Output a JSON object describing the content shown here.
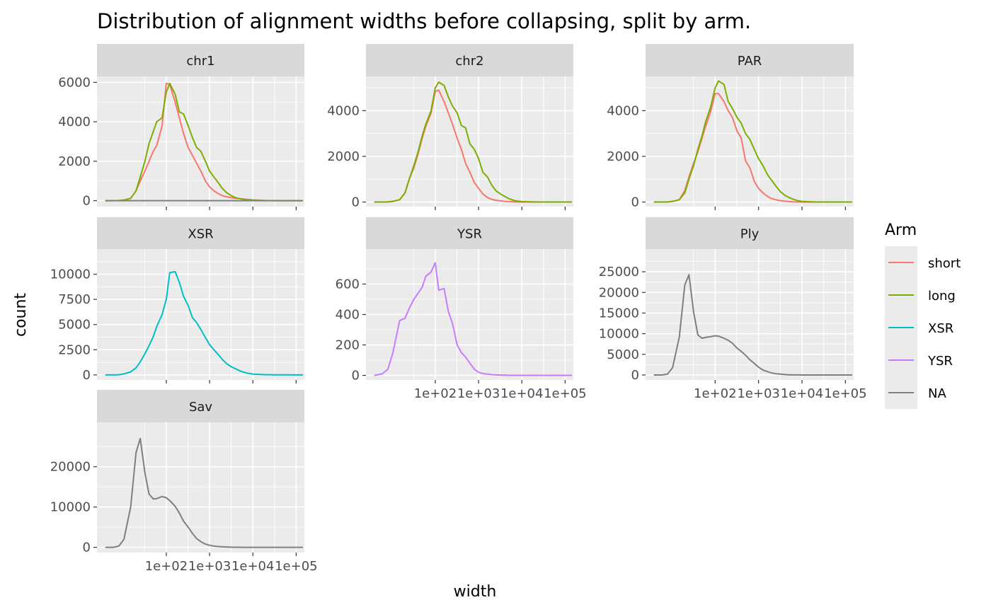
{
  "chart_data": {
    "type": "line",
    "title": "Distribution of alignment widths before collapsing, split by arm.",
    "xlabel": "width",
    "ylabel": "count",
    "x_scale": "log10",
    "xlim": [
      2.5,
      155000
    ],
    "x_ticks": [
      100,
      1000,
      10000,
      100000
    ],
    "x_tick_labels": [
      "1e+02",
      "1e+03",
      "1e+04",
      "1e+05"
    ],
    "grid": true,
    "legend": {
      "title": "Arm",
      "position": "right",
      "entries": [
        {
          "name": "short",
          "color": "#F8766D"
        },
        {
          "name": "long",
          "color": "#7CAE00"
        },
        {
          "name": "XSR",
          "color": "#00BFC4"
        },
        {
          "name": "YSR",
          "color": "#C77CFF"
        },
        {
          "name": "NA",
          "color": "#7F7F7F"
        }
      ]
    },
    "x": [
      4,
      5.9,
      8,
      10.5,
      15,
      20,
      25,
      32,
      40,
      50,
      60,
      80,
      100,
      120,
      160,
      200,
      250,
      320,
      400,
      500,
      630,
      800,
      1000,
      1260,
      1600,
      2000,
      2500,
      3200,
      4000,
      5000,
      6300,
      8000,
      10000,
      15000,
      20000,
      30000,
      50000,
      100000,
      140000
    ],
    "panels": [
      {
        "label": "chr1",
        "ylim": [
          -300,
          6300
        ],
        "y_ticks": [
          0,
          2000,
          4000,
          6000
        ],
        "y_tick_labels": [
          "0",
          "2000",
          "4000",
          "6000"
        ],
        "show_x_labels": false,
        "series": [
          {
            "name": "short",
            "color": "#F8766D",
            "values": [
              0,
              0,
              10,
              30,
              120,
              500,
              1000,
              1500,
              2000,
              2500,
              2800,
              3800,
              5950,
              5900,
              5000,
              4200,
              3400,
              2700,
              2300,
              1900,
              1500,
              1000,
              700,
              500,
              350,
              250,
              200,
              150,
              120,
              100,
              80,
              60,
              40,
              20,
              10,
              5,
              2,
              0,
              0
            ]
          },
          {
            "name": "long",
            "color": "#7CAE00",
            "values": [
              0,
              0,
              10,
              30,
              120,
              500,
              1200,
              2000,
              2900,
              3500,
              4000,
              4200,
              5500,
              5950,
              5400,
              4500,
              4400,
              3800,
              3200,
              2700,
              2500,
              2000,
              1500,
              1200,
              900,
              600,
              400,
              250,
              150,
              100,
              60,
              30,
              20,
              10,
              5,
              2,
              0,
              0,
              0
            ]
          },
          {
            "name": "NA",
            "color": "#7F7F7F",
            "values": [
              0,
              0,
              0,
              0,
              0,
              0,
              0,
              0,
              0,
              0,
              0,
              0,
              0,
              0,
              0,
              0,
              0,
              0,
              0,
              0,
              0,
              0,
              0,
              0,
              0,
              0,
              0,
              0,
              0,
              0,
              0,
              0,
              0,
              0,
              0,
              0,
              0,
              0,
              0
            ]
          }
        ]
      },
      {
        "label": "chr2",
        "ylim": [
          -200,
          5500
        ],
        "y_ticks": [
          0,
          2000,
          4000
        ],
        "y_tick_labels": [
          "0",
          "2000",
          "4000"
        ],
        "show_x_labels": false,
        "series": [
          {
            "name": "short",
            "color": "#F8766D",
            "values": [
              0,
              0,
              5,
              30,
              100,
              400,
              1000,
              1500,
              2100,
              2800,
              3300,
              3900,
              4850,
              4900,
              4400,
              3900,
              3400,
              2800,
              2300,
              1700,
              1300,
              850,
              600,
              350,
              200,
              120,
              80,
              50,
              30,
              20,
              10,
              5,
              2,
              0,
              0,
              0,
              0,
              0,
              0
            ]
          },
          {
            "name": "long",
            "color": "#7CAE00",
            "values": [
              0,
              0,
              5,
              30,
              100,
              400,
              1000,
              1600,
              2200,
              2900,
              3400,
              4000,
              5000,
              5250,
              5100,
              4600,
              4200,
              3900,
              3350,
              3250,
              2550,
              2300,
              1900,
              1300,
              1100,
              750,
              500,
              350,
              250,
              150,
              80,
              40,
              20,
              10,
              5,
              2,
              0,
              0,
              0
            ]
          }
        ]
      },
      {
        "label": "PAR",
        "ylim": [
          -200,
          5500
        ],
        "y_ticks": [
          0,
          2000,
          4000
        ],
        "y_tick_labels": [
          "0",
          "2000",
          "4000"
        ],
        "show_x_labels": false,
        "series": [
          {
            "name": "short",
            "color": "#F8766D",
            "values": [
              0,
              0,
              5,
              30,
              100,
              500,
              1100,
              1700,
              2200,
              2800,
              3300,
              4000,
              4750,
              4750,
              4400,
              4000,
              3700,
              3100,
              2800,
              1800,
              1500,
              900,
              600,
              400,
              250,
              150,
              100,
              60,
              40,
              20,
              10,
              5,
              2,
              0,
              0,
              0,
              0,
              0,
              0
            ]
          },
          {
            "name": "long",
            "color": "#7CAE00",
            "values": [
              0,
              0,
              5,
              30,
              100,
              400,
              1000,
              1600,
              2300,
              2900,
              3500,
              4200,
              5000,
              5300,
              5150,
              4400,
              4100,
              3700,
              3450,
              3000,
              2750,
              2300,
              1900,
              1600,
              1200,
              950,
              700,
              450,
              300,
              200,
              120,
              60,
              30,
              15,
              5,
              2,
              0,
              0,
              0
            ]
          }
        ]
      },
      {
        "label": "XSR",
        "ylim": [
          -500,
          12500
        ],
        "y_ticks": [
          0,
          2500,
          5000,
          7500,
          10000
        ],
        "y_tick_labels": [
          "0",
          "2500",
          "5000",
          "7500",
          "10000"
        ],
        "show_x_labels": false,
        "series": [
          {
            "name": "XSR",
            "color": "#00BFC4",
            "values": [
              0,
              0,
              20,
              100,
              300,
              700,
              1300,
              2100,
              2900,
              3800,
              4800,
              6000,
              7500,
              10150,
              10250,
              9200,
              7800,
              6900,
              5700,
              5200,
              4500,
              3700,
              3000,
              2500,
              2000,
              1500,
              1100,
              800,
              600,
              400,
              250,
              150,
              80,
              40,
              20,
              10,
              5,
              0,
              0
            ]
          }
        ]
      },
      {
        "label": "YSR",
        "ylim": [
          -30,
          830
        ],
        "y_ticks": [
          0,
          200,
          400,
          600
        ],
        "y_tick_labels": [
          "0",
          "200",
          "400",
          "600"
        ],
        "show_x_labels": true,
        "series": [
          {
            "name": "YSR",
            "color": "#C77CFF",
            "values": [
              0,
              10,
              40,
              150,
              360,
              375,
              440,
              500,
              540,
              580,
              650,
              680,
              740,
              560,
              570,
              420,
              340,
              200,
              150,
              120,
              80,
              40,
              20,
              12,
              8,
              5,
              3,
              2,
              1,
              0,
              0,
              0,
              0,
              0,
              0,
              0,
              0,
              0,
              0
            ]
          }
        ]
      },
      {
        "label": "Ply",
        "ylim": [
          -1200,
          30500
        ],
        "y_ticks": [
          0,
          5000,
          10000,
          15000,
          20000,
          25000
        ],
        "y_tick_labels": [
          "0",
          "5000",
          "10000",
          "15000",
          "20000",
          "25000"
        ],
        "show_x_labels": true,
        "series": [
          {
            "name": "NA",
            "color": "#7F7F7F",
            "values": [
              0,
              0,
              200,
              1800,
              9200,
              21800,
              24300,
              15200,
              9700,
              8900,
              9100,
              9300,
              9500,
              9400,
              8900,
              8400,
              7700,
              6500,
              5700,
              4800,
              3700,
              2800,
              1900,
              1200,
              800,
              500,
              300,
              200,
              100,
              50,
              20,
              10,
              5,
              0,
              0,
              0,
              0,
              0,
              0
            ]
          }
        ]
      },
      {
        "label": "Sav",
        "ylim": [
          -1300,
          31000
        ],
        "y_ticks": [
          0,
          10000,
          20000
        ],
        "y_tick_labels": [
          "0",
          "10000",
          "20000"
        ],
        "show_x_labels": true,
        "series": [
          {
            "name": "NA",
            "color": "#7F7F7F",
            "values": [
              0,
              0,
              300,
              2000,
              10000,
              23500,
              27000,
              18500,
              13200,
              12000,
              12100,
              12600,
              12300,
              11600,
              10200,
              8500,
              6500,
              5000,
              3500,
              2200,
              1400,
              800,
              500,
              300,
              200,
              120,
              80,
              40,
              20,
              10,
              5,
              2,
              0,
              0,
              0,
              0,
              0,
              0,
              0
            ]
          }
        ]
      }
    ]
  }
}
